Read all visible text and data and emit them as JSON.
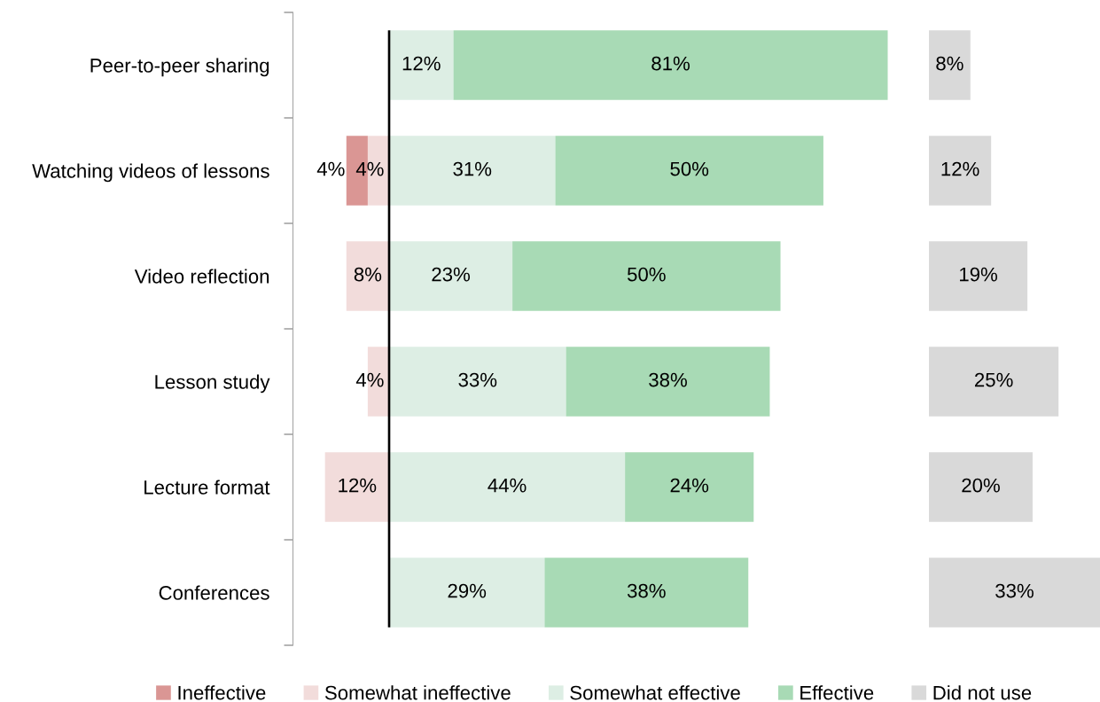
{
  "chart_data": [
    {
      "type": "bar",
      "orientation": "horizontal",
      "stacked": true,
      "categories": [
        "Peer-to-peer sharing",
        "Watching videos of lessons",
        "Video reflection",
        "Lesson study",
        "Lecture format",
        "Conferences"
      ],
      "xlim": [
        18,
        0
      ],
      "tick_labels": "y",
      "legend": "bottom",
      "series": [
        {
          "name": "Somewhat ineffective",
          "color": "#f2dcdb",
          "values": [
            null,
            4,
            8,
            4,
            12,
            null
          ],
          "value_labels": [
            null,
            "4%",
            "8%",
            "4%",
            "12%",
            null
          ]
        },
        {
          "name": "Ineffective",
          "color": "#da9694",
          "values": [
            null,
            4,
            null,
            null,
            null,
            null
          ],
          "value_labels": [
            null,
            "4%",
            null,
            null,
            null,
            null
          ]
        }
      ]
    },
    {
      "type": "bar",
      "orientation": "horizontal",
      "stacked": true,
      "categories": [
        null,
        null,
        null,
        null,
        null,
        null
      ],
      "tick_labels": false,
      "legend": "bottom",
      "ref_lines": [
        {
          "axis": "x",
          "value": 0,
          "color": "#000000"
        }
      ],
      "series": [
        {
          "name": "Somewhat effective",
          "color": "#ddeee4",
          "values": [
            12,
            31,
            23,
            33,
            44,
            29
          ],
          "value_labels": [
            "12%",
            "31%",
            "23%",
            "33%",
            "44%",
            "29%"
          ]
        },
        {
          "name": "Effective",
          "color": "#a8dab5",
          "values": [
            81,
            50,
            50,
            38,
            24,
            38
          ],
          "value_labels": [
            "81%",
            "50%",
            "50%",
            "38%",
            "24%",
            "38%"
          ]
        }
      ]
    },
    {
      "type": "bar",
      "orientation": "horizontal",
      "categories": [
        null,
        null,
        null,
        null,
        null,
        null
      ],
      "tick_labels": false,
      "legend": "bottom",
      "series": [
        {
          "name": "Did not use",
          "color": "#d9d9d9",
          "values": [
            8,
            12,
            19,
            25,
            20,
            33
          ],
          "value_labels": [
            "8%",
            "12%",
            "19%",
            "25%",
            "20%",
            "33%"
          ]
        }
      ]
    }
  ]
}
